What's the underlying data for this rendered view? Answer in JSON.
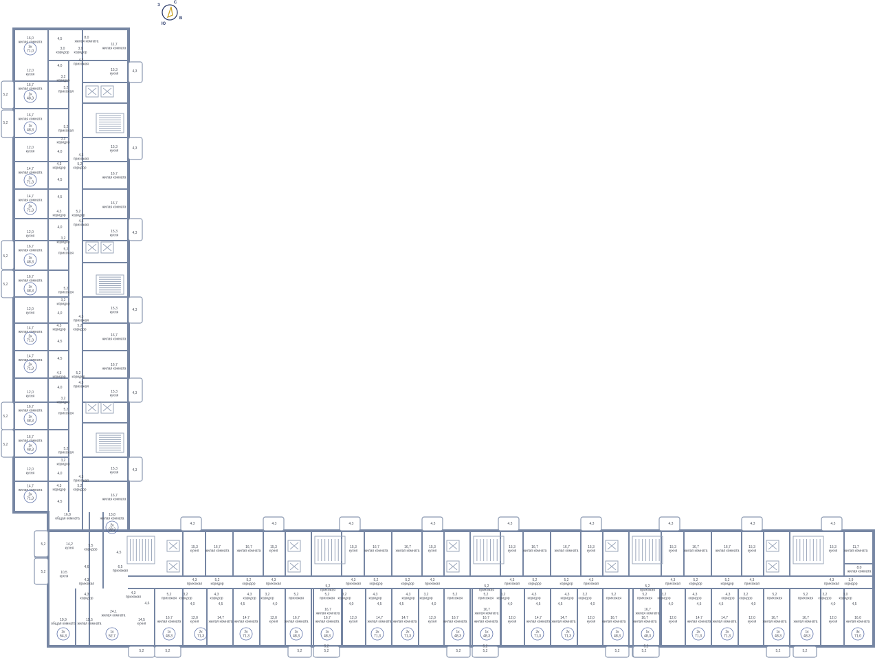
{
  "compass": {
    "north": "С",
    "east": "В",
    "south": "Ю",
    "west": "З",
    "arrow_color": "#c9a227",
    "ring_color": "#2a3a6a"
  },
  "types": {
    "living": "жилая комната",
    "common": "общая комната",
    "kitchen": "кухня",
    "hall": "прихожая",
    "corridor": "коридор"
  },
  "colors": {
    "wall": "#7686a3",
    "text": "#4a4f5a",
    "apartment_ring": "#5a6fa8"
  },
  "vertical_top": [
    {
      "area": "16,0",
      "type": "living"
    },
    {
      "area": "4,5",
      "type": null
    },
    {
      "area": "8,0",
      "type": "living"
    },
    {
      "area": "11,7",
      "type": "living"
    },
    {
      "area": "3,0",
      "type": "corridor"
    },
    {
      "area": "3,9",
      "type": "corridor"
    },
    {
      "area": "4,3",
      "type": "hall"
    }
  ],
  "vertical_module": [
    {
      "area": "12,0",
      "type": "kitchen"
    },
    {
      "area": "4,0",
      "type": null
    },
    {
      "area": "15,3",
      "type": "kitchen"
    },
    {
      "area": "4,3",
      "type": null
    },
    {
      "area": "3,2",
      "type": "corridor"
    },
    {
      "area": "5,2",
      "type": "hall"
    },
    {
      "area": "16,7",
      "type": "living"
    },
    {
      "area": "5,2",
      "type": null
    },
    {
      "area": "16,7",
      "type": "living"
    },
    {
      "area": "5,2",
      "type": null
    },
    {
      "area": "5,2",
      "type": "hall"
    },
    {
      "area": "3,2",
      "type": "corridor"
    },
    {
      "area": "12,0",
      "type": "kitchen"
    },
    {
      "area": "4,0",
      "type": null
    },
    {
      "area": "4,3",
      "type": "hall"
    },
    {
      "area": "15,3",
      "type": "kitchen"
    },
    {
      "area": "4,3",
      "type": null
    },
    {
      "area": "4,3",
      "type": "corridor"
    },
    {
      "area": "5,2",
      "type": "corridor"
    },
    {
      "area": "14,7",
      "type": "living"
    },
    {
      "area": "4,5",
      "type": null
    },
    {
      "area": "16,7",
      "type": "living"
    },
    {
      "area": "14,7",
      "type": "living"
    },
    {
      "area": "4,5",
      "type": null
    },
    {
      "area": "16,7",
      "type": "living"
    },
    {
      "area": "5,2",
      "type": "corridor"
    },
    {
      "area": "4,3",
      "type": "corridor"
    },
    {
      "area": "4,3",
      "type": "hall"
    }
  ],
  "corner": [
    {
      "area": "16,8",
      "type": "common"
    },
    {
      "area": "13,8",
      "type": "living"
    },
    {
      "area": "14,2",
      "type": "kitchen"
    },
    {
      "area": "5,5",
      "type": "corridor"
    },
    {
      "area": "5,2",
      "type": null
    },
    {
      "area": "5,2",
      "type": null
    },
    {
      "area": "4,5",
      "type": null
    },
    {
      "area": "6,5",
      "type": "hall"
    },
    {
      "area": "10,5",
      "type": "kitchen"
    },
    {
      "area": "4,6",
      "type": null
    },
    {
      "area": "4,3",
      "type": "hall"
    },
    {
      "area": "4,3",
      "type": "corridor"
    },
    {
      "area": "19,9",
      "type": "common"
    },
    {
      "area": "15,5",
      "type": "living"
    },
    {
      "area": "24,1",
      "type": "living"
    },
    {
      "area": "4,3",
      "type": "hall"
    },
    {
      "area": "4,6",
      "type": null
    },
    {
      "area": "14,5",
      "type": "kitchen"
    },
    {
      "area": "5,2",
      "type": null
    },
    {
      "area": "4,3",
      "type": null
    }
  ],
  "horizontal_module": [
    {
      "area": "15,3",
      "type": "kitchen"
    },
    {
      "area": "16,7",
      "type": "living"
    },
    {
      "area": "16,7",
      "type": "living"
    },
    {
      "area": "15,3",
      "type": "kitchen"
    },
    {
      "area": "4,3",
      "type": null
    },
    {
      "area": "4,3",
      "type": null
    },
    {
      "area": "4,3",
      "type": "hall"
    },
    {
      "area": "5,2",
      "type": "corridor"
    },
    {
      "area": "5,2",
      "type": "corridor"
    },
    {
      "area": "4,3",
      "type": "hall"
    },
    {
      "area": "5,2",
      "type": "hall"
    },
    {
      "area": "3,2",
      "type": "corridor"
    },
    {
      "area": "4,3",
      "type": "corridor"
    },
    {
      "area": "4,3",
      "type": "corridor"
    },
    {
      "area": "3,2",
      "type": "corridor"
    },
    {
      "area": "5,2",
      "type": "hall"
    },
    {
      "area": "5,2",
      "type": "hall"
    },
    {
      "area": "4,0",
      "type": null
    },
    {
      "area": "4,5",
      "type": null
    },
    {
      "area": "4,5",
      "type": null
    },
    {
      "area": "4,0",
      "type": null
    },
    {
      "area": "16,7",
      "type": "living"
    },
    {
      "area": "12,0",
      "type": "kitchen"
    },
    {
      "area": "14,7",
      "type": "living"
    },
    {
      "area": "14,7",
      "type": "living"
    },
    {
      "area": "12,0",
      "type": "kitchen"
    },
    {
      "area": "16,7",
      "type": "living"
    },
    {
      "area": "16,7",
      "type": "living"
    },
    {
      "area": "5,2",
      "type": null
    },
    {
      "area": "5,2",
      "type": null
    },
    {
      "area": "5,2",
      "type": null
    }
  ],
  "east_end": [
    {
      "area": "15,3",
      "type": "kitchen"
    },
    {
      "area": "11,7",
      "type": "living"
    },
    {
      "area": "4,3",
      "type": null
    },
    {
      "area": "4,3",
      "type": "hall"
    },
    {
      "area": "3,9",
      "type": "corridor"
    },
    {
      "area": "8,0",
      "type": "living"
    },
    {
      "area": "3,2",
      "type": "corridor"
    },
    {
      "area": "3,0",
      "type": "corridor"
    },
    {
      "area": "4,0",
      "type": null
    },
    {
      "area": "4,5",
      "type": null
    },
    {
      "area": "12,0",
      "type": "kitchen"
    },
    {
      "area": "16,0",
      "type": "living"
    }
  ],
  "apartments": {
    "vertical": [
      {
        "rooms": "3к",
        "area": "71,0"
      },
      {
        "rooms": "1к",
        "area": "48,3"
      },
      {
        "rooms": "1к",
        "area": "48,3"
      },
      {
        "rooms": "2к",
        "area": "71,3"
      },
      {
        "rooms": "2к",
        "area": "71,3"
      },
      {
        "rooms": "1к",
        "area": "48,3"
      },
      {
        "rooms": "1к",
        "area": "48,3"
      },
      {
        "rooms": "2к",
        "area": "71,3"
      },
      {
        "rooms": "2к",
        "area": "71,3"
      },
      {
        "rooms": "1к",
        "area": "48,3"
      },
      {
        "rooms": "1к",
        "area": "48,3"
      },
      {
        "rooms": "2к",
        "area": "71,3"
      }
    ],
    "corner": [
      {
        "rooms": "2к",
        "area": "68,3"
      },
      {
        "rooms": "2к",
        "area": "64,3"
      },
      {
        "rooms": "1к",
        "area": "52,7"
      }
    ],
    "horizontal": [
      {
        "rooms": "1к",
        "area": "48,3"
      },
      {
        "rooms": "2к",
        "area": "71,3"
      },
      {
        "rooms": "2к",
        "area": "71,3"
      },
      {
        "rooms": "1к",
        "area": "48,3"
      },
      {
        "rooms": "1к",
        "area": "48,3"
      },
      {
        "rooms": "2к",
        "area": "71,3"
      },
      {
        "rooms": "2к",
        "area": "71,3"
      },
      {
        "rooms": "1к",
        "area": "48,3"
      },
      {
        "rooms": "1к",
        "area": "48,3"
      },
      {
        "rooms": "2к",
        "area": "71,3"
      },
      {
        "rooms": "2к",
        "area": "71,3"
      },
      {
        "rooms": "1к",
        "area": "48,3"
      },
      {
        "rooms": "1к",
        "area": "48,3"
      },
      {
        "rooms": "2к",
        "area": "71,3"
      },
      {
        "rooms": "2к",
        "area": "71,3"
      },
      {
        "rooms": "1к",
        "area": "48,3"
      },
      {
        "rooms": "1к",
        "area": "48,3"
      },
      {
        "rooms": "3к",
        "area": "71,0"
      }
    ]
  }
}
